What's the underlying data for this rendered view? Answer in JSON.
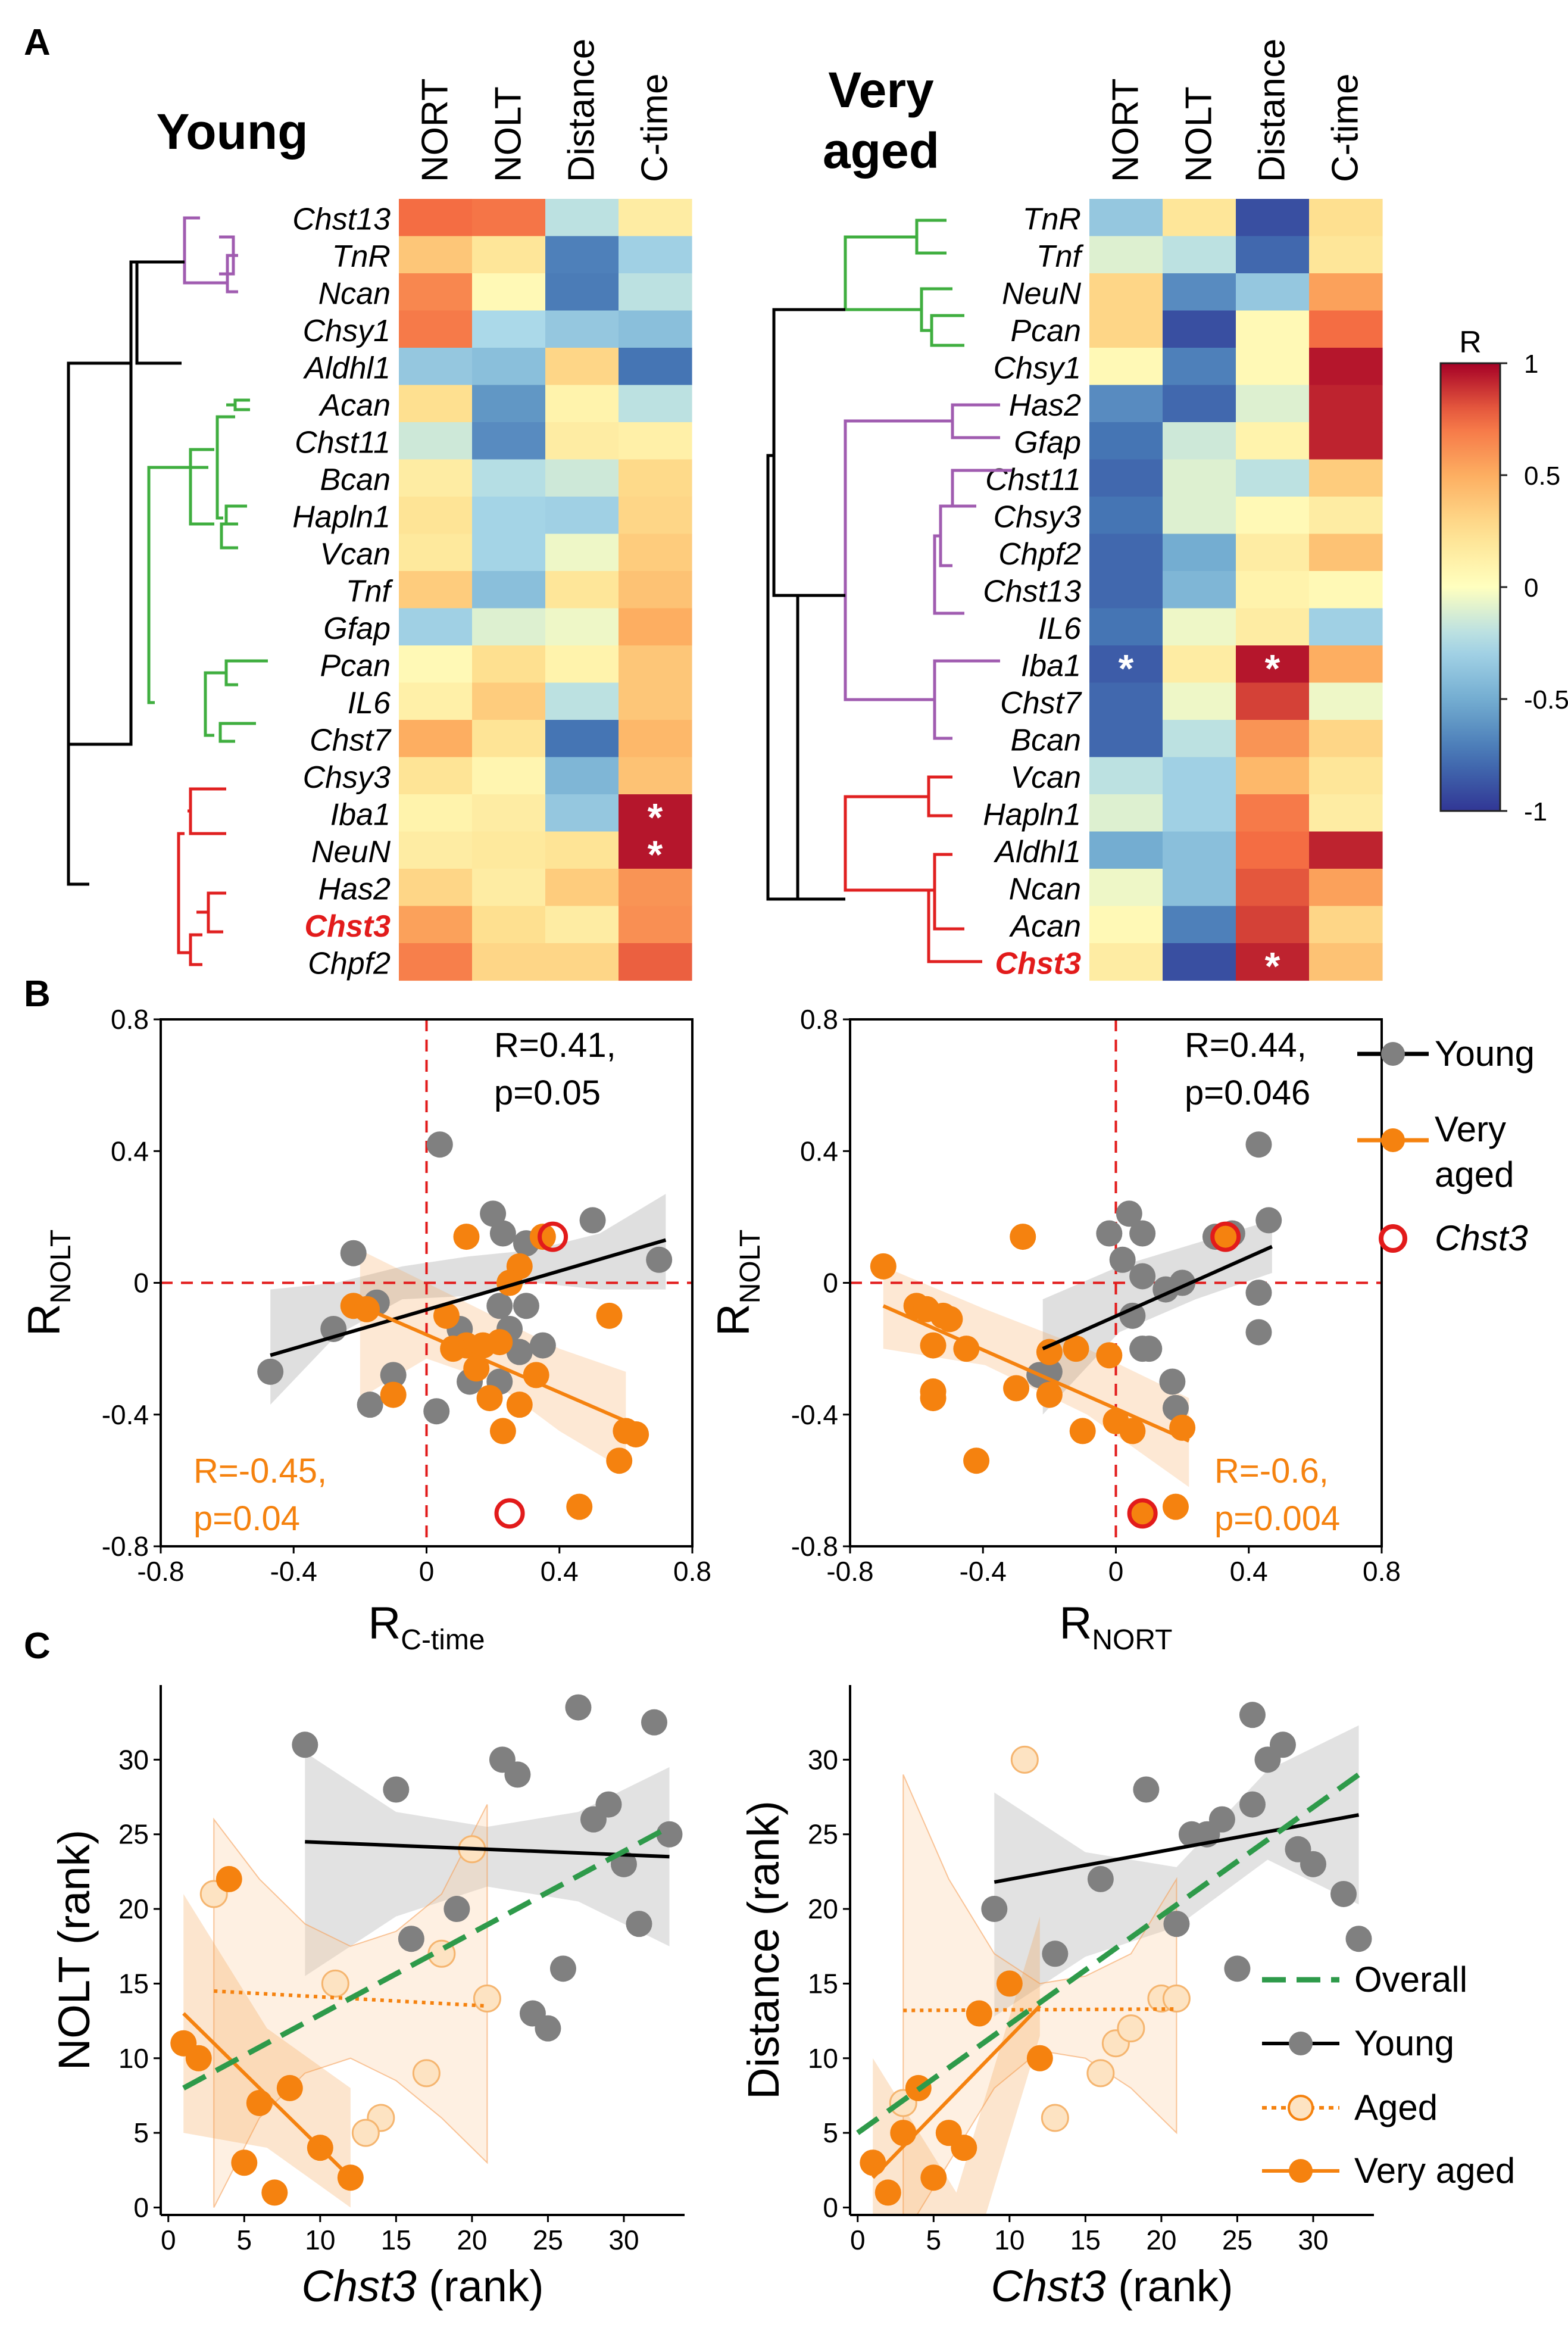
{
  "panel_labels": {
    "a": "A",
    "b": "B",
    "c": "C"
  },
  "heatmap_young": {
    "title": "Young",
    "columns": [
      "NORT",
      "NOLT",
      "Distance",
      "C-time"
    ],
    "row_colors": [
      "#a05cb0",
      "#a05cb0",
      "#a05cb0",
      "#a05cb0",
      "#000000",
      "#3fae3f",
      "#3fae3f",
      "#3fae3f",
      "#3fae3f",
      "#3fae3f",
      "#3fae3f",
      "#3fae3f",
      "#3fae3f",
      "#3fae3f",
      "#3fae3f",
      "#3fae3f",
      "#e02020",
      "#e02020",
      "#e02020",
      "#e02020",
      "#e02020"
    ],
    "highlight_row": 19
  },
  "heatmap_very_aged": {
    "title_line1": "Very",
    "title_line2": "aged",
    "columns": [
      "NORT",
      "NOLT",
      "Distance",
      "C-time"
    ],
    "row_colors": [
      "#3fae3f",
      "#3fae3f",
      "#3fae3f",
      "#3fae3f",
      "#3fae3f",
      "#a05cb0",
      "#a05cb0",
      "#a05cb0",
      "#a05cb0",
      "#a05cb0",
      "#a05cb0",
      "#a05cb0",
      "#a05cb0",
      "#a05cb0",
      "#a05cb0",
      "#e02020",
      "#e02020",
      "#e02020",
      "#e02020",
      "#e02020",
      "#e02020"
    ],
    "highlight_row": 20
  },
  "colorbar": {
    "title": "R",
    "ticks": [
      "1",
      "0.5",
      "0",
      "-0.5",
      "-1"
    ],
    "tick_values": [
      1,
      0.5,
      0,
      -0.5,
      -1
    ]
  },
  "legend_b": {
    "young": "Young",
    "very_aged_1": "Very",
    "very_aged_2": "aged",
    "chst3": "Chst3"
  },
  "legend_c": {
    "overall": "Overall",
    "young": "Young",
    "aged": "Aged",
    "very_aged": "Very aged"
  },
  "colors": {
    "young": "#808080",
    "very_aged": "#f5820f",
    "aged_fill": "#fde3c2",
    "overall": "#2e9a4a",
    "highlight": "#e21b1b",
    "dendro_purple": "#a05cb0",
    "dendro_green": "#3fae3f",
    "dendro_red": "#e02020"
  },
  "chart_data": [
    {
      "type": "heatmap",
      "title": "Young",
      "columns": [
        "NORT",
        "NOLT",
        "Distance",
        "C-time"
      ],
      "rows": [
        "Chst13",
        "TnR",
        "Ncan",
        "Chsy1",
        "Aldhl1",
        "Acan",
        "Chst11",
        "Bcan",
        "Hapln1",
        "Vcan",
        "Tnf",
        "Gfap",
        "Pcan",
        "IL6",
        "Chst7",
        "Chsy3",
        "Iba1",
        "NeuN",
        "Has2",
        "Chst3",
        "Chpf2"
      ],
      "values": [
        [
          0.75,
          0.72,
          -0.2,
          0.15
        ],
        [
          0.38,
          0.2,
          -0.7,
          -0.3
        ],
        [
          0.65,
          0.05,
          -0.72,
          -0.2
        ],
        [
          0.7,
          -0.25,
          -0.35,
          -0.4
        ],
        [
          -0.35,
          -0.4,
          0.3,
          -0.75
        ],
        [
          0.25,
          -0.6,
          0.1,
          -0.2
        ],
        [
          -0.15,
          -0.65,
          0.15,
          0.12
        ],
        [
          0.15,
          -0.22,
          -0.15,
          0.28
        ],
        [
          0.22,
          -0.28,
          -0.3,
          0.3
        ],
        [
          0.18,
          -0.28,
          -0.05,
          0.35
        ],
        [
          0.35,
          -0.4,
          0.2,
          0.4
        ],
        [
          -0.3,
          -0.1,
          -0.05,
          0.5
        ],
        [
          0.05,
          0.25,
          0.1,
          0.38
        ],
        [
          0.12,
          0.35,
          -0.2,
          0.38
        ],
        [
          0.5,
          0.22,
          -0.75,
          0.45
        ],
        [
          0.22,
          0.08,
          -0.45,
          0.4
        ],
        [
          0.1,
          0.15,
          -0.35,
          0.95
        ],
        [
          0.15,
          0.18,
          0.22,
          0.95
        ],
        [
          0.3,
          0.15,
          0.35,
          0.6
        ],
        [
          0.55,
          0.25,
          0.15,
          0.62
        ],
        [
          0.68,
          0.3,
          0.3,
          0.78
        ]
      ],
      "significant": [
        [
          16,
          3
        ],
        [
          17,
          3
        ]
      ],
      "marker": "*",
      "color_range": [
        -1,
        1
      ]
    },
    {
      "type": "heatmap",
      "title": "Very aged",
      "columns": [
        "NORT",
        "NOLT",
        "Distance",
        "C-time"
      ],
      "rows": [
        "TnR",
        "Tnf",
        "NeuN",
        "Pcan",
        "Chsy1",
        "Has2",
        "Gfap",
        "Chst11",
        "Chsy3",
        "Chpf2",
        "Chst13",
        "IL6",
        "Iba1",
        "Chst7",
        "Bcan",
        "Vcan",
        "Hapln1",
        "Aldhl1",
        "Ncan",
        "Acan",
        "Chst3"
      ],
      "values": [
        [
          -0.35,
          0.2,
          -0.9,
          0.25
        ],
        [
          -0.1,
          -0.2,
          -0.8,
          0.2
        ],
        [
          0.3,
          -0.65,
          -0.35,
          0.55
        ],
        [
          0.3,
          -0.9,
          0.05,
          0.75
        ],
        [
          0.05,
          -0.7,
          0.05,
          0.95
        ],
        [
          -0.65,
          -0.8,
          -0.1,
          0.92
        ],
        [
          -0.75,
          -0.15,
          0.1,
          0.92
        ],
        [
          -0.8,
          -0.1,
          -0.2,
          0.35
        ],
        [
          -0.75,
          -0.1,
          0.05,
          0.15
        ],
        [
          -0.8,
          -0.5,
          0.15,
          0.4
        ],
        [
          -0.8,
          -0.45,
          0.1,
          0.05
        ],
        [
          -0.75,
          -0.05,
          0.15,
          -0.3
        ],
        [
          -0.85,
          0.15,
          0.95,
          0.5
        ],
        [
          -0.8,
          -0.05,
          0.85,
          -0.05
        ],
        [
          -0.8,
          -0.2,
          0.6,
          0.3
        ],
        [
          -0.2,
          -0.3,
          0.45,
          0.2
        ],
        [
          -0.1,
          -0.3,
          0.7,
          0.15
        ],
        [
          -0.5,
          -0.4,
          0.75,
          0.92
        ],
        [
          -0.05,
          -0.4,
          0.8,
          0.55
        ],
        [
          0.05,
          -0.7,
          0.85,
          0.3
        ],
        [
          0.15,
          -0.9,
          0.92,
          0.4
        ]
      ],
      "significant": [
        [
          12,
          0
        ],
        [
          12,
          2
        ],
        [
          20,
          2
        ]
      ],
      "marker": "*",
      "color_range": [
        -1,
        1
      ]
    },
    {
      "type": "scatter",
      "xlabel": "R",
      "xlabel_sub": "C-time",
      "ylabel": "R",
      "ylabel_sub": "NOLT",
      "xlim": [
        -0.8,
        0.8
      ],
      "ylim": [
        -0.8,
        0.8
      ],
      "x_ticks": [
        "-0.8",
        "-0.4",
        "0",
        "0.4",
        "0.8"
      ],
      "y_ticks": [
        "0.8",
        "0.4",
        "0",
        "-0.4",
        "-0.8"
      ],
      "series": [
        {
          "name": "Young",
          "x": [
            0.04,
            0.2,
            0.23,
            0.3,
            0.5,
            0.7,
            0.1,
            -0.22,
            -0.15,
            0.22,
            0.3,
            0.25,
            0.35,
            0.28,
            -0.28,
            -0.1,
            0.13,
            -0.47,
            -0.17,
            0.03,
            0.22
          ],
          "y": [
            0.42,
            0.21,
            0.15,
            0.12,
            0.19,
            0.07,
            -0.14,
            0.09,
            -0.06,
            -0.07,
            -0.07,
            -0.14,
            -0.19,
            -0.21,
            -0.14,
            -0.28,
            -0.3,
            -0.27,
            -0.37,
            -0.39,
            -0.3
          ],
          "fit": {
            "x": [
              -0.47,
              0.72
            ],
            "y": [
              -0.22,
              0.13
            ]
          },
          "band_upper": [
            -0.02,
            0.0,
            0.05,
            0.08,
            0.1,
            0.15,
            0.27
          ],
          "band_lower": [
            -0.37,
            -0.16,
            -0.05,
            -0.04,
            0.0,
            -0.02,
            -0.02
          ]
        },
        {
          "name": "Very aged",
          "x": [
            0.12,
            0.35,
            0.28,
            0.25,
            0.55,
            -0.22,
            -0.18,
            0.06,
            0.12,
            0.22,
            0.08,
            0.15,
            0.17,
            -0.1,
            0.33,
            0.19,
            0.28,
            0.6,
            0.63,
            0.58,
            0.46,
            0.23
          ],
          "y": [
            0.14,
            0.14,
            0.05,
            0.0,
            -0.1,
            -0.07,
            -0.08,
            -0.1,
            -0.19,
            -0.18,
            -0.2,
            -0.26,
            -0.19,
            -0.34,
            -0.28,
            -0.35,
            -0.37,
            -0.45,
            -0.46,
            -0.54,
            -0.68,
            -0.45
          ],
          "fit": {
            "x": [
              -0.2,
              0.6
            ],
            "y": [
              -0.07,
              -0.42
            ]
          },
          "band_upper": [
            0.1,
            0.0,
            -0.1,
            -0.2,
            -0.27
          ],
          "band_lower": [
            -0.35,
            -0.23,
            -0.3,
            -0.45,
            -0.57
          ]
        }
      ],
      "highlight": [
        {
          "x": 0.38,
          "y": 0.14
        },
        {
          "x": 0.25,
          "y": -0.7
        }
      ],
      "annotations": [
        {
          "text": "R=0.41,",
          "series": "Young"
        },
        {
          "text": "p=0.05",
          "series": "Young"
        },
        {
          "text": "R=-0.45,",
          "series": "Very aged"
        },
        {
          "text": "p=0.04",
          "series": "Very aged"
        }
      ]
    },
    {
      "type": "scatter",
      "xlabel": "R",
      "xlabel_sub": "NORT",
      "ylabel": "R",
      "ylabel_sub": "NOLT",
      "xlim": [
        -0.8,
        0.8
      ],
      "ylim": [
        -0.8,
        0.8
      ],
      "x_ticks": [
        "-0.8",
        "-0.4",
        "0",
        "0.4",
        "0.8"
      ],
      "y_ticks": [
        "0.8",
        "0.4",
        "0",
        "-0.4",
        "-0.8"
      ],
      "series": [
        {
          "name": "Young",
          "x": [
            0.43,
            0.04,
            0.46,
            0.35,
            0.3,
            0.08,
            -0.02,
            0.02,
            0.2,
            0.08,
            0.15,
            0.05,
            0.43,
            0.43,
            0.1,
            -0.23,
            0.17,
            0.18,
            -0.2,
            0.08
          ],
          "y": [
            0.42,
            0.21,
            0.19,
            0.15,
            0.14,
            0.15,
            0.15,
            0.07,
            0.0,
            0.02,
            -0.02,
            -0.1,
            -0.03,
            -0.15,
            -0.2,
            -0.28,
            -0.3,
            -0.38,
            -0.27,
            -0.2
          ],
          "fit": {
            "x": [
              -0.22,
              0.47
            ],
            "y": [
              -0.2,
              0.11
            ]
          },
          "band_upper": [
            -0.05,
            0.05,
            0.12,
            0.19
          ],
          "band_lower": [
            -0.4,
            -0.15,
            -0.05,
            0.03
          ]
        },
        {
          "name": "Very aged",
          "x": [
            -0.28,
            0.33,
            -0.7,
            -0.6,
            -0.57,
            -0.52,
            -0.5,
            -0.55,
            -0.45,
            -0.2,
            -0.12,
            -0.02,
            -0.3,
            -0.55,
            -0.55,
            -0.2,
            0.0,
            0.05,
            -0.1,
            0.2,
            -0.42,
            0.08,
            0.18
          ],
          "y": [
            0.14,
            0.14,
            0.05,
            -0.07,
            -0.08,
            -0.1,
            -0.11,
            -0.19,
            -0.2,
            -0.21,
            -0.2,
            -0.22,
            -0.32,
            -0.33,
            -0.35,
            -0.34,
            -0.42,
            -0.45,
            -0.45,
            -0.44,
            -0.54,
            -0.7,
            -0.68
          ],
          "fit": {
            "x": [
              -0.7,
              0.22
            ],
            "y": [
              -0.07,
              -0.48
            ]
          },
          "band_upper": [
            0.05,
            -0.08,
            -0.2,
            -0.35
          ],
          "band_lower": [
            -0.2,
            -0.25,
            -0.4,
            -0.62
          ]
        }
      ],
      "highlight": [
        {
          "x": 0.33,
          "y": 0.14
        },
        {
          "x": 0.08,
          "y": -0.7
        }
      ],
      "annotations": [
        {
          "text": "R=0.44,",
          "series": "Young"
        },
        {
          "text": "p=0.046",
          "series": "Young"
        },
        {
          "text": "R=-0.6,",
          "series": "Very aged"
        },
        {
          "text": "p=0.004",
          "series": "Very aged"
        }
      ]
    },
    {
      "type": "scatter",
      "xlabel": "Chst3 (rank)",
      "ylabel": "NOLT (rank)",
      "xlim": [
        -0.5,
        34
      ],
      "ylim": [
        -0.5,
        35
      ],
      "x_ticks": [
        "0",
        "5",
        "10",
        "15",
        "20",
        "25",
        "30"
      ],
      "y_ticks": [
        "0",
        "5",
        "10",
        "15",
        "20",
        "25",
        "30"
      ],
      "series": [
        {
          "name": "Young",
          "x": [
            9,
            15,
            22,
            23,
            27,
            29,
            32,
            28,
            30,
            33,
            16,
            19,
            24,
            25,
            31,
            26
          ],
          "y": [
            31,
            28,
            30,
            29,
            33.5,
            27,
            32.5,
            26,
            23,
            25,
            18,
            20,
            13,
            12,
            19,
            16
          ],
          "fit": {
            "x": [
              9,
              33
            ],
            "y": [
              24.5,
              23.5
            ]
          }
        },
        {
          "name": "Aged",
          "x": [
            3,
            20,
            18,
            11,
            14,
            13,
            17,
            21
          ],
          "y": [
            21,
            24,
            17,
            15,
            6,
            5,
            9,
            14
          ],
          "fit": {
            "x": [
              3,
              21
            ],
            "y": [
              14.5,
              13.5
            ]
          }
        },
        {
          "name": "Very aged",
          "x": [
            1,
            2,
            4,
            5,
            6,
            7,
            8,
            10,
            12
          ],
          "y": [
            11,
            10,
            22,
            3,
            7,
            1,
            8,
            4,
            2
          ],
          "fit": {
            "x": [
              1,
              12
            ],
            "y": [
              13,
              2
            ]
          }
        },
        {
          "name": "Overall",
          "fit": {
            "x": [
              1,
              33
            ],
            "y": [
              8,
              25.5
            ]
          }
        }
      ]
    },
    {
      "type": "scatter",
      "xlabel": "Chst3 (rank)",
      "ylabel": "Distance (rank)",
      "xlim": [
        -0.5,
        34
      ],
      "ylim": [
        -0.5,
        35
      ],
      "x_ticks": [
        "0",
        "5",
        "10",
        "15",
        "20",
        "25",
        "30"
      ],
      "y_ticks": [
        "0",
        "5",
        "10",
        "15",
        "20",
        "25",
        "30"
      ],
      "series": [
        {
          "name": "Young",
          "x": [
            9,
            19,
            22,
            24,
            26,
            26,
            28,
            29,
            32,
            33,
            13,
            16,
            21,
            23,
            27,
            30,
            25
          ],
          "y": [
            20,
            28,
            25,
            26,
            33,
            27,
            31,
            24,
            21,
            18,
            17,
            22,
            19,
            25,
            30,
            23,
            16
          ],
          "fit": {
            "x": [
              9,
              33
            ],
            "y": [
              21.8,
              26.3
            ]
          }
        },
        {
          "name": "Aged",
          "x": [
            11,
            3,
            13,
            16,
            17,
            18,
            20,
            21
          ],
          "y": [
            30,
            7,
            6,
            9,
            11,
            12,
            14,
            14
          ],
          "fit": {
            "x": [
              3,
              21
            ],
            "y": [
              13.2,
              13.3
            ]
          }
        },
        {
          "name": "Very aged",
          "x": [
            1,
            2,
            3,
            4,
            5,
            6,
            7,
            8,
            10,
            12
          ],
          "y": [
            3,
            1,
            5,
            8,
            2,
            5,
            4,
            13,
            15,
            10
          ],
          "fit": {
            "x": [
              1,
              12
            ],
            "y": [
              2,
              13.5
            ]
          }
        },
        {
          "name": "Overall",
          "fit": {
            "x": [
              0,
              33
            ],
            "y": [
              5,
              29
            ]
          }
        }
      ]
    }
  ]
}
